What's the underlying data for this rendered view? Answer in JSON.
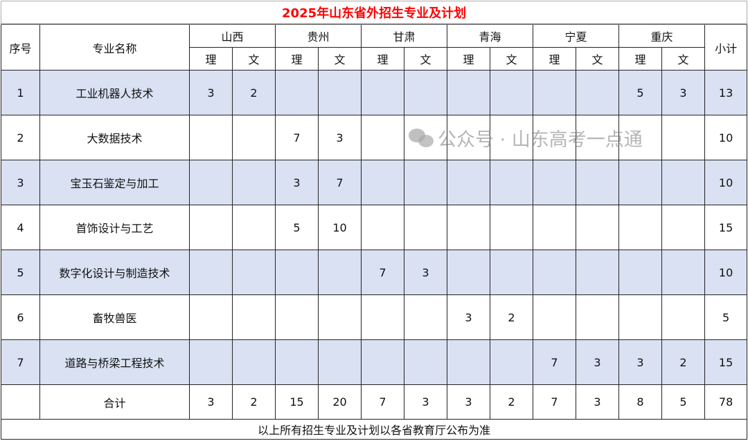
{
  "title": "2025年山东省外招生专业及计划",
  "headers": {
    "index": "序号",
    "major": "专业名称",
    "subtotal": "小计",
    "science": "理",
    "arts": "文",
    "provinces": [
      "山西",
      "贵州",
      "甘肃",
      "青海",
      "宁夏",
      "重庆"
    ]
  },
  "rows": [
    {
      "index": "1",
      "major": "工业机器人技术",
      "values": [
        "3",
        "2",
        "",
        "",
        "",
        "",
        "",
        "",
        "",
        "",
        "5",
        "3"
      ],
      "subtotal": "13"
    },
    {
      "index": "2",
      "major": "大数据技术",
      "values": [
        "",
        "",
        "7",
        "3",
        "",
        "",
        "",
        "",
        "",
        "",
        "",
        ""
      ],
      "subtotal": "10"
    },
    {
      "index": "3",
      "major": "宝玉石鉴定与加工",
      "values": [
        "",
        "",
        "3",
        "7",
        "",
        "",
        "",
        "",
        "",
        "",
        "",
        ""
      ],
      "subtotal": "10"
    },
    {
      "index": "4",
      "major": "首饰设计与工艺",
      "values": [
        "",
        "",
        "5",
        "10",
        "",
        "",
        "",
        "",
        "",
        "",
        "",
        ""
      ],
      "subtotal": "15"
    },
    {
      "index": "5",
      "major": "数字化设计与制造技术",
      "values": [
        "",
        "",
        "",
        "",
        "7",
        "3",
        "",
        "",
        "",
        "",
        "",
        ""
      ],
      "subtotal": "10"
    },
    {
      "index": "6",
      "major": "畜牧兽医",
      "values": [
        "",
        "",
        "",
        "",
        "",
        "",
        "3",
        "2",
        "",
        "",
        "",
        ""
      ],
      "subtotal": "5"
    },
    {
      "index": "7",
      "major": "道路与桥梁工程技术",
      "values": [
        "",
        "",
        "",
        "",
        "",
        "",
        "",
        "",
        "7",
        "3",
        "3",
        "2"
      ],
      "subtotal": "15"
    }
  ],
  "total": {
    "label": "合计",
    "values": [
      "3",
      "2",
      "15",
      "20",
      "7",
      "3",
      "3",
      "2",
      "7",
      "3",
      "8",
      "5"
    ],
    "subtotal": "78"
  },
  "footer": "以上所有招生专业及计划以各省教育厅公布为准",
  "watermark": "公众号 · 山东高考一点通",
  "colors": {
    "title": "#ff0000",
    "shade": "#d9e1f2"
  }
}
